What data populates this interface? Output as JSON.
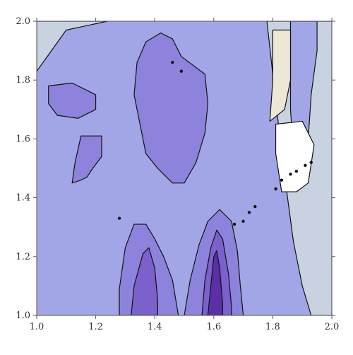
{
  "chart_data": {
    "type": "heatmap",
    "subtype": "contour",
    "title": "",
    "xlabel": "",
    "ylabel": "",
    "xlim": [
      1.0,
      2.0
    ],
    "ylim": [
      1.0,
      2.0
    ],
    "x_ticks": [
      "1.0",
      "1.2",
      "1.4",
      "1.6",
      "1.8",
      "2.0"
    ],
    "y_ticks": [
      "1.0",
      "1.2",
      "1.4",
      "1.6",
      "1.8",
      "2.0"
    ],
    "grid": false,
    "legend": "none",
    "colors": {
      "background_level": "#a3a6e6",
      "mid_level": "#8e83dc",
      "dark_level": "#7a61cb",
      "darkest_level": "#5a2fa8",
      "light_level": "#c8d2e0",
      "beige_level": "#efe7d6",
      "white_level": "#ffffff",
      "contour_line": "#111111"
    },
    "regions": [
      {
        "level": "mid_level",
        "polygon": [
          [
            1.15,
            1.61
          ],
          [
            1.22,
            1.61
          ],
          [
            1.22,
            1.54
          ],
          [
            1.19,
            1.5
          ],
          [
            1.17,
            1.47
          ],
          [
            1.15,
            1.46
          ],
          [
            1.12,
            1.45
          ],
          [
            1.13,
            1.52
          ]
        ]
      },
      {
        "level": "mid_level",
        "polygon": [
          [
            1.37,
            1.93
          ],
          [
            1.42,
            1.96
          ],
          [
            1.46,
            1.94
          ],
          [
            1.49,
            1.88
          ],
          [
            1.57,
            1.82
          ],
          [
            1.58,
            1.72
          ],
          [
            1.57,
            1.62
          ],
          [
            1.54,
            1.52
          ],
          [
            1.5,
            1.45
          ],
          [
            1.46,
            1.45
          ],
          [
            1.41,
            1.5
          ],
          [
            1.37,
            1.55
          ],
          [
            1.35,
            1.65
          ],
          [
            1.33,
            1.75
          ],
          [
            1.34,
            1.86
          ]
        ]
      },
      {
        "level": "mid_level",
        "polygon": [
          [
            1.04,
            1.78
          ],
          [
            1.12,
            1.79
          ],
          [
            1.2,
            1.75
          ],
          [
            1.2,
            1.7
          ],
          [
            1.14,
            1.67
          ],
          [
            1.07,
            1.68
          ],
          [
            1.04,
            1.72
          ]
        ]
      },
      {
        "level": "mid_level",
        "polygon": [
          [
            1.28,
            1.0
          ],
          [
            1.28,
            1.09
          ],
          [
            1.3,
            1.23
          ],
          [
            1.33,
            1.31
          ],
          [
            1.37,
            1.31
          ],
          [
            1.4,
            1.26
          ],
          [
            1.43,
            1.2
          ],
          [
            1.46,
            1.12
          ],
          [
            1.48,
            1.0
          ]
        ]
      },
      {
        "level": "mid_level",
        "polygon": [
          [
            1.5,
            1.0
          ],
          [
            1.52,
            1.12
          ],
          [
            1.55,
            1.24
          ],
          [
            1.58,
            1.32
          ],
          [
            1.62,
            1.36
          ],
          [
            1.66,
            1.32
          ],
          [
            1.68,
            1.22
          ],
          [
            1.69,
            1.1
          ],
          [
            1.7,
            1.0
          ]
        ]
      },
      {
        "level": "dark_level",
        "polygon": [
          [
            1.32,
            1.0
          ],
          [
            1.33,
            1.1
          ],
          [
            1.36,
            1.21
          ],
          [
            1.38,
            1.23
          ],
          [
            1.4,
            1.16
          ],
          [
            1.41,
            1.05
          ],
          [
            1.41,
            1.0
          ]
        ]
      },
      {
        "level": "dark_level",
        "polygon": [
          [
            1.56,
            1.0
          ],
          [
            1.57,
            1.12
          ],
          [
            1.59,
            1.23
          ],
          [
            1.61,
            1.29
          ],
          [
            1.63,
            1.26
          ],
          [
            1.65,
            1.14
          ],
          [
            1.66,
            1.03
          ],
          [
            1.66,
            1.0
          ]
        ]
      },
      {
        "level": "darkest_level",
        "polygon": [
          [
            1.58,
            1.0
          ],
          [
            1.59,
            1.1
          ],
          [
            1.6,
            1.2
          ],
          [
            1.61,
            1.22
          ],
          [
            1.62,
            1.16
          ],
          [
            1.63,
            1.04
          ],
          [
            1.63,
            1.0
          ]
        ]
      },
      {
        "level": "light_level",
        "polygon": [
          [
            1.78,
            2.0
          ],
          [
            1.83,
            1.55
          ],
          [
            1.85,
            1.4
          ],
          [
            1.87,
            1.25
          ],
          [
            1.9,
            1.1
          ],
          [
            1.93,
            1.0
          ],
          [
            2.0,
            1.0
          ],
          [
            2.0,
            2.0
          ]
        ]
      },
      {
        "level": "light_level",
        "polygon": [
          [
            1.0,
            2.0
          ],
          [
            1.24,
            2.0
          ],
          [
            1.1,
            1.97
          ],
          [
            1.05,
            1.9
          ],
          [
            1.0,
            1.83
          ]
        ]
      },
      {
        "level": "background_level",
        "polygon": [
          [
            1.86,
            2.0
          ],
          [
            1.95,
            2.0
          ],
          [
            1.95,
            1.9
          ],
          [
            1.93,
            1.75
          ],
          [
            1.92,
            1.6
          ],
          [
            1.9,
            1.5
          ],
          [
            1.87,
            1.55
          ],
          [
            1.86,
            1.7
          ]
        ]
      },
      {
        "level": "beige_level",
        "polygon": [
          [
            1.8,
            1.97
          ],
          [
            1.86,
            1.97
          ],
          [
            1.86,
            1.8
          ],
          [
            1.84,
            1.7
          ],
          [
            1.79,
            1.66
          ],
          [
            1.8,
            1.8
          ]
        ]
      },
      {
        "level": "white_level",
        "polygon": [
          [
            1.81,
            1.65
          ],
          [
            1.9,
            1.66
          ],
          [
            1.94,
            1.58
          ],
          [
            1.92,
            1.45
          ],
          [
            1.88,
            1.42
          ],
          [
            1.83,
            1.42
          ],
          [
            1.81,
            1.55
          ]
        ]
      }
    ],
    "points": [
      [
        1.81,
        1.43
      ],
      [
        1.83,
        1.46
      ],
      [
        1.86,
        1.48
      ],
      [
        1.88,
        1.49
      ],
      [
        1.91,
        1.51
      ],
      [
        1.93,
        1.52
      ],
      [
        1.74,
        1.37
      ],
      [
        1.72,
        1.35
      ],
      [
        1.7,
        1.32
      ],
      [
        1.67,
        1.31
      ],
      [
        1.46,
        1.86
      ],
      [
        1.49,
        1.83
      ],
      [
        1.28,
        1.33
      ]
    ]
  }
}
